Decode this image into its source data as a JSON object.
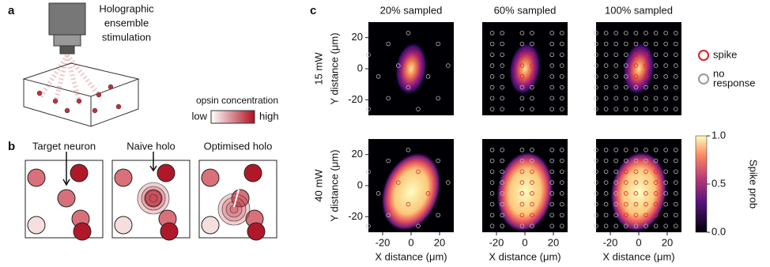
{
  "panel_a": {
    "label": "a",
    "title_lines": [
      "Holographic",
      "ensemble",
      "stimulation"
    ],
    "colorbar_title": "opsin concentration",
    "low": "low",
    "high": "high"
  },
  "panel_b": {
    "label": "b",
    "titles": [
      "Target neuron",
      "Naive holo",
      "Optimised holo"
    ]
  },
  "panel_c": {
    "label": "c",
    "columns": [
      "20% sampled",
      "60% sampled",
      "100% sampled"
    ],
    "rows": [
      "15 mW",
      "40 mW"
    ],
    "ylabel": "Y distance (μm)",
    "xlabel": "X distance (μm)",
    "xlim": [
      -30,
      30
    ],
    "ylim": [
      -30,
      30
    ],
    "xticks": [
      -20,
      0,
      20
    ],
    "yticks": [
      20,
      0,
      -20
    ],
    "legend": [
      {
        "name": "spike",
        "color": "#e0202a"
      },
      {
        "name_lines": [
          "no",
          "response"
        ],
        "color": "#999999"
      }
    ],
    "colorbar": {
      "label": "Spike prob",
      "lim": [
        0,
        1
      ],
      "ticks": [
        {
          "value": 0,
          "label": "0.0"
        },
        {
          "value": 0.5,
          "label": "0.5"
        },
        {
          "value": 1,
          "label": "1.0"
        }
      ]
    }
  }
}
